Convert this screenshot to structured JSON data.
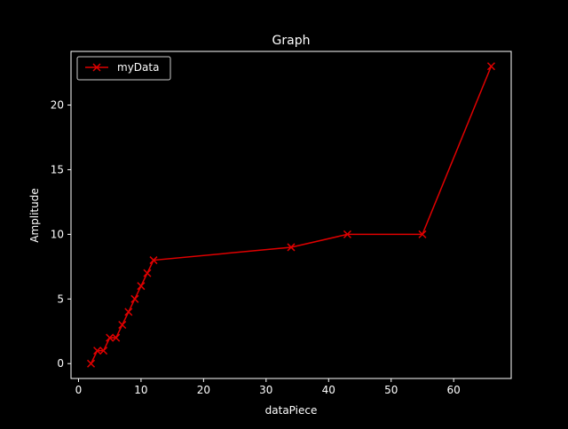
{
  "chart_data": {
    "type": "line",
    "title": "Graph",
    "xlabel": "dataPiece",
    "ylabel": "Amplitude",
    "xlim": [
      -1.2,
      69.2
    ],
    "ylim": [
      -1.15,
      24.15
    ],
    "xticks": [
      0,
      10,
      20,
      30,
      40,
      50,
      60
    ],
    "yticks": [
      0,
      5,
      10,
      15,
      20
    ],
    "grid": false,
    "legend_position": "upper-left",
    "series": [
      {
        "name": "myData",
        "color": "#e00000",
        "marker": "x",
        "x": [
          2,
          3,
          4,
          5,
          6,
          7,
          8,
          9,
          10,
          11,
          12,
          34,
          43,
          55,
          66
        ],
        "y": [
          0,
          1,
          1,
          2,
          2,
          3,
          4,
          5,
          6,
          7,
          8,
          9,
          10,
          10,
          23
        ]
      }
    ]
  }
}
